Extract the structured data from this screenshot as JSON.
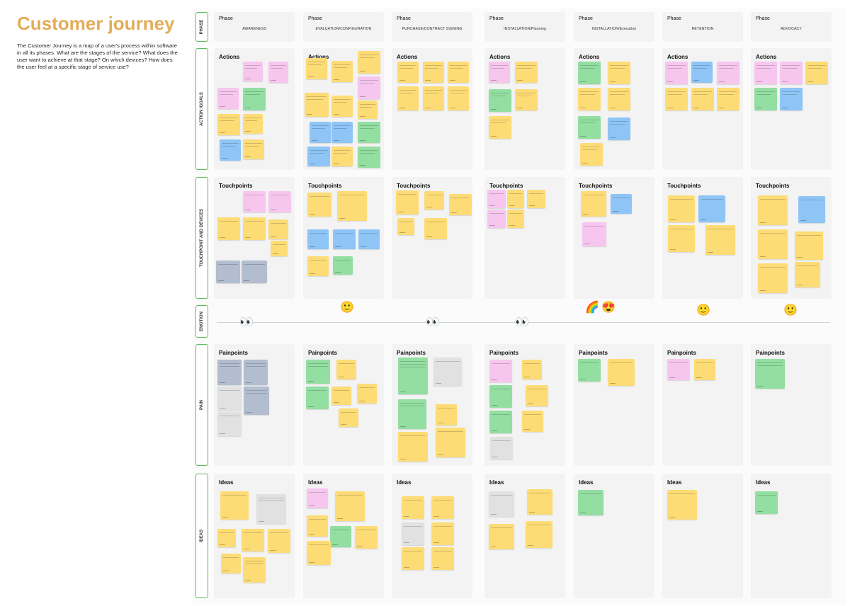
{
  "title": "Customer journey",
  "description": "The Customer Journey is a map of a user's process within software in all its phases. What are the stages of the service? What does the user want to achieve at that stage? On which devices? How does the user feel at a specific stage of service use?",
  "row_labels": [
    "PHASE",
    "ACTION /GOALS",
    "TOUCHPOINT AND DEVICES",
    "EMOTION",
    "PAIN",
    "IDEAS"
  ],
  "phase_heading": "Phase",
  "phases": [
    "AWARENESS",
    "EVALUATION/CONFIGURATION",
    "PURCHASE/CONTRACT SIGNING",
    "INSTALLATION/Planning",
    "INSTALLATION/Execution",
    "RETENTION",
    "ADVOCACY"
  ],
  "section_headings": {
    "actions": "Actions",
    "touchpoints": "Touchpoints",
    "painpoints": "Painpoints",
    "ideas": "Ideas"
  },
  "emotions": {
    "smile": "🙂",
    "eyes": "👀",
    "heart_eyes": "😍",
    "rainbow": "🌈"
  },
  "colors": {
    "title": "#e2ad5a",
    "row_label_border": "#5cb85c",
    "cell_bg": "#f3f3f3",
    "note_yellow": "#fddc76",
    "note_pink": "#f7c6ef",
    "note_green": "#93dea1",
    "note_blue": "#8ec5f6",
    "note_slate": "#b3bdd0",
    "note_gray": "#e1e1e1"
  }
}
